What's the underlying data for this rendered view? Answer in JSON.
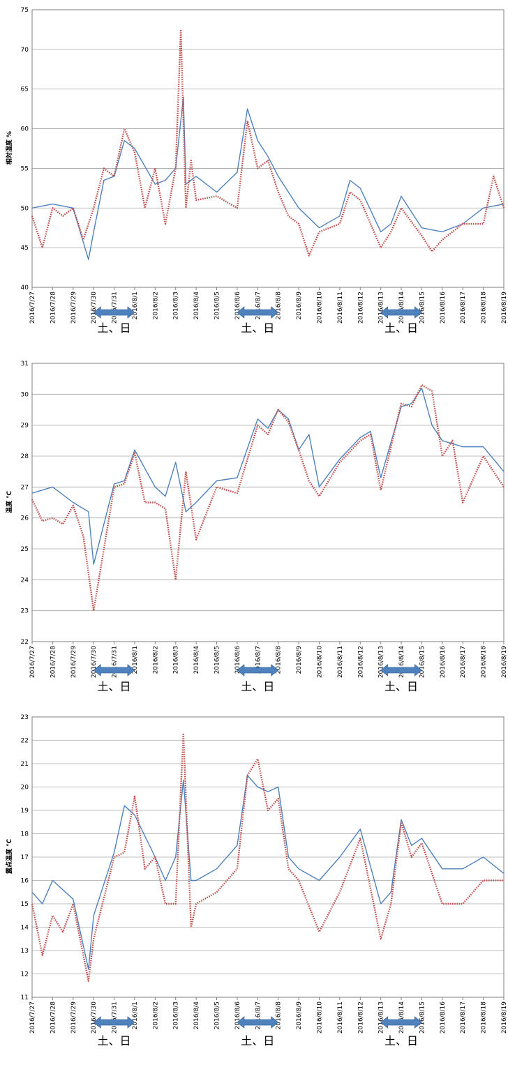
{
  "colors": {
    "series_a": "#4f81bd",
    "series_b": "#c0504d",
    "arrow": "#4f81bd",
    "grid": "#a6a6a6"
  },
  "chart_data": [
    {
      "type": "line",
      "title": "",
      "ylabel": "相対湿度 %",
      "ylim": [
        40,
        75
      ],
      "yticks": [
        40,
        45,
        50,
        55,
        60,
        65,
        70,
        75
      ],
      "xlim": [
        "2016/7/27",
        "2016/8/19"
      ],
      "xticks": [
        "2016/7/27",
        "2016/7/28",
        "2016/7/29",
        "2016/7/30",
        "2016/7/31",
        "2016/8/1",
        "2016/8/2",
        "2016/8/3",
        "2016/8/4",
        "2016/8/5",
        "2016/8/6",
        "2016/8/7",
        "2016/8/8",
        "2016/8/9",
        "2016/8/10",
        "2016/8/11",
        "2016/8/12",
        "2016/8/13",
        "2016/8/14",
        "2016/8/15",
        "2016/8/16",
        "2016/8/17",
        "2016/8/18",
        "2016/8/19"
      ],
      "grid": true,
      "legend": "none",
      "series": [
        {
          "style": "solid",
          "x": [
            "2016/7/27",
            "2016/7/28",
            "2016/7/29",
            "2016/7/29 18:00",
            "2016/7/30",
            "2016/7/30 12:00",
            "2016/7/31",
            "2016/7/31 12:00",
            "2016/8/1",
            "2016/8/2",
            "2016/8/2 12:00",
            "2016/8/3",
            "2016/8/3 9:00",
            "2016/8/3 12:00",
            "2016/8/4",
            "2016/8/5",
            "2016/8/6",
            "2016/8/6 12:00",
            "2016/8/7",
            "2016/8/7 12:00",
            "2016/8/8",
            "2016/8/8 12:00",
            "2016/8/9",
            "2016/8/10",
            "2016/8/11",
            "2016/8/11 12:00",
            "2016/8/12",
            "2016/8/13",
            "2016/8/13 12:00",
            "2016/8/14",
            "2016/8/15",
            "2016/8/16",
            "2016/8/17",
            "2016/8/18",
            "2016/8/19"
          ],
          "values": [
            50,
            50.5,
            50,
            43.5,
            47,
            53.5,
            54,
            58.5,
            57.5,
            53,
            53.5,
            55,
            64,
            53,
            54,
            52,
            54.5,
            62.5,
            58.5,
            56.5,
            54,
            52,
            50,
            47.5,
            49,
            53.5,
            52.5,
            47,
            48,
            51.5,
            47.5,
            47,
            48,
            50,
            50.5
          ]
        },
        {
          "style": "dotted",
          "x": [
            "2016/7/27",
            "2016/7/27 12:00",
            "2016/7/28",
            "2016/7/28 12:00",
            "2016/7/29",
            "2016/7/29 12:00",
            "2016/7/30",
            "2016/7/30 12:00",
            "2016/7/31",
            "2016/7/31 12:00",
            "2016/8/1",
            "2016/8/1 12:00",
            "2016/8/2",
            "2016/8/2 12:00",
            "2016/8/3",
            "2016/8/3 6:00",
            "2016/8/3 12:00",
            "2016/8/3 18:00",
            "2016/8/4",
            "2016/8/5",
            "2016/8/6",
            "2016/8/6 12:00",
            "2016/8/7",
            "2016/8/7 12:00",
            "2016/8/8",
            "2016/8/8 12:00",
            "2016/8/9",
            "2016/8/9 12:00",
            "2016/8/10",
            "2016/8/11",
            "2016/8/11 12:00",
            "2016/8/12",
            "2016/8/13",
            "2016/8/13 12:00",
            "2016/8/14",
            "2016/8/15",
            "2016/8/15 12:00",
            "2016/8/16",
            "2016/8/17",
            "2016/8/18",
            "2016/8/18 12:00",
            "2016/8/19"
          ],
          "values": [
            49,
            45,
            50,
            49,
            50,
            46,
            50,
            55,
            54,
            60,
            57,
            50,
            55,
            48,
            55,
            72.5,
            50,
            56,
            51,
            51.5,
            50,
            61,
            55,
            56,
            52,
            49,
            48,
            44,
            47,
            48,
            52,
            51,
            45,
            47,
            50,
            46.5,
            44.5,
            46,
            48,
            48,
            54,
            50
          ]
        }
      ],
      "annotations": [
        "土、日",
        "土、日",
        "土、日"
      ]
    },
    {
      "type": "line",
      "title": "",
      "ylabel": "温度 ℃",
      "ylim": [
        22,
        31
      ],
      "yticks": [
        22,
        23,
        24,
        25,
        26,
        27,
        28,
        29,
        30,
        31
      ],
      "xlim": [
        "2016/7/27",
        "2016/8/19"
      ],
      "xticks": [
        "2016/7/27",
        "2016/7/28",
        "2016/7/29",
        "2016/7/30",
        "2016/7/31",
        "2016/8/1",
        "2016/8/2",
        "2016/8/3",
        "2016/8/4",
        "2016/8/5",
        "2016/8/6",
        "2016/8/7",
        "2016/8/8",
        "2016/8/9",
        "2016/8/10",
        "2016/8/11",
        "2016/8/12",
        "2016/8/13",
        "2016/8/14",
        "2016/8/15",
        "2016/8/16",
        "2016/8/17",
        "2016/8/18",
        "2016/8/19"
      ],
      "grid": true,
      "legend": "none",
      "series": [
        {
          "style": "solid",
          "x": [
            "2016/7/27",
            "2016/7/28",
            "2016/7/29",
            "2016/7/29 18:00",
            "2016/7/30",
            "2016/7/31",
            "2016/7/31 12:00",
            "2016/8/1",
            "2016/8/2",
            "2016/8/2 12:00",
            "2016/8/3",
            "2016/8/3 12:00",
            "2016/8/4",
            "2016/8/5",
            "2016/8/6",
            "2016/8/7",
            "2016/8/7 12:00",
            "2016/8/8",
            "2016/8/8 12:00",
            "2016/8/9",
            "2016/8/9 12:00",
            "2016/8/10",
            "2016/8/11",
            "2016/8/12",
            "2016/8/12 12:00",
            "2016/8/13",
            "2016/8/14",
            "2016/8/14 12:00",
            "2016/8/15",
            "2016/8/15 12:00",
            "2016/8/16",
            "2016/8/17",
            "2016/8/18",
            "2016/8/19"
          ],
          "values": [
            26.8,
            27,
            26.5,
            26.2,
            24.5,
            27.1,
            27.2,
            28.2,
            27,
            26.7,
            27.8,
            26.2,
            26.5,
            27.2,
            27.3,
            29.2,
            28.9,
            29.5,
            29.2,
            28.2,
            28.7,
            27,
            27.9,
            28.6,
            28.8,
            27.3,
            29.6,
            29.7,
            30.2,
            29,
            28.5,
            28.3,
            28.3,
            27.5
          ]
        },
        {
          "style": "dotted",
          "x": [
            "2016/7/27",
            "2016/7/27 12:00",
            "2016/7/28",
            "2016/7/28 12:00",
            "2016/7/29",
            "2016/7/29 12:00",
            "2016/7/30",
            "2016/7/31",
            "2016/7/31 12:00",
            "2016/8/1",
            "2016/8/1 12:00",
            "2016/8/2",
            "2016/8/2 12:00",
            "2016/8/3",
            "2016/8/3 12:00",
            "2016/8/4",
            "2016/8/5",
            "2016/8/6",
            "2016/8/7",
            "2016/8/7 12:00",
            "2016/8/8",
            "2016/8/8 12:00",
            "2016/8/9",
            "2016/8/9 12:00",
            "2016/8/10",
            "2016/8/11",
            "2016/8/12",
            "2016/8/12 12:00",
            "2016/8/13",
            "2016/8/14",
            "2016/8/14 12:00",
            "2016/8/15",
            "2016/8/15 12:00",
            "2016/8/16",
            "2016/8/16 12:00",
            "2016/8/17",
            "2016/8/18",
            "2016/8/19"
          ],
          "values": [
            26.6,
            25.9,
            26,
            25.8,
            26.4,
            25.4,
            23,
            27,
            27.1,
            28.1,
            26.5,
            26.5,
            26.3,
            24,
            27.5,
            25.3,
            27,
            26.8,
            29,
            28.7,
            29.5,
            29.1,
            28.2,
            27.2,
            26.7,
            27.8,
            28.5,
            28.7,
            26.9,
            29.7,
            29.6,
            30.3,
            30.1,
            28,
            28.5,
            26.5,
            28,
            27
          ]
        }
      ],
      "annotations": [
        "土、日",
        "土、日",
        "土、日"
      ]
    },
    {
      "type": "line",
      "title": "",
      "ylabel": "露点温度 ℃",
      "ylim": [
        11,
        23
      ],
      "yticks": [
        11,
        12,
        13,
        14,
        15,
        16,
        17,
        18,
        19,
        20,
        21,
        22,
        23
      ],
      "xlim": [
        "2016/7/27",
        "2016/8/19"
      ],
      "xticks": [
        "2016/7/27",
        "2016/7/28",
        "2016/7/29",
        "2016/7/30",
        "2016/7/31",
        "2016/8/1",
        "2016/8/2",
        "2016/8/3",
        "2016/8/4",
        "2016/8/5",
        "2016/8/6",
        "2016/8/7",
        "2016/8/8",
        "2016/8/9",
        "2016/8/10",
        "2016/8/11",
        "2016/8/12",
        "2016/8/13",
        "2016/8/14",
        "2016/8/15",
        "2016/8/16",
        "2016/8/17",
        "2016/8/18",
        "2016/8/19"
      ],
      "grid": true,
      "legend": "none",
      "series": [
        {
          "style": "solid",
          "x": [
            "2016/7/27",
            "2016/7/27 12:00",
            "2016/7/28",
            "2016/7/29",
            "2016/7/29 18:00",
            "2016/7/30",
            "2016/7/31",
            "2016/7/31 12:00",
            "2016/8/1",
            "2016/8/2",
            "2016/8/2 12:00",
            "2016/8/3",
            "2016/8/3 9:00",
            "2016/8/3 18:00",
            "2016/8/4",
            "2016/8/5",
            "2016/8/6",
            "2016/8/6 12:00",
            "2016/8/7",
            "2016/8/7 12:00",
            "2016/8/8",
            "2016/8/8 12:00",
            "2016/8/9",
            "2016/8/10",
            "2016/8/11",
            "2016/8/12",
            "2016/8/13",
            "2016/8/13 12:00",
            "2016/8/14",
            "2016/8/14 12:00",
            "2016/8/15",
            "2016/8/16",
            "2016/8/17",
            "2016/8/18",
            "2016/8/19"
          ],
          "values": [
            15.5,
            15,
            16,
            15.2,
            12.2,
            14.5,
            17.2,
            19.2,
            18.8,
            17,
            16,
            17,
            20.3,
            16,
            16,
            16.5,
            17.5,
            20.5,
            20,
            19.8,
            20,
            17,
            16.5,
            16,
            17,
            18.2,
            15,
            15.5,
            18.6,
            17.5,
            17.8,
            16.5,
            16.5,
            17,
            16.3
          ]
        },
        {
          "style": "dotted",
          "x": [
            "2016/7/27",
            "2016/7/27 12:00",
            "2016/7/28",
            "2016/7/28 12:00",
            "2016/7/29",
            "2016/7/29 18:00",
            "2016/7/30",
            "2016/7/31",
            "2016/7/31 12:00",
            "2016/8/1",
            "2016/8/1 12:00",
            "2016/8/2",
            "2016/8/2 12:00",
            "2016/8/3",
            "2016/8/3 9:00",
            "2016/8/3 18:00",
            "2016/8/4",
            "2016/8/5",
            "2016/8/6",
            "2016/8/6 12:00",
            "2016/8/7",
            "2016/8/7 12:00",
            "2016/8/8",
            "2016/8/8 12:00",
            "2016/8/9",
            "2016/8/10",
            "2016/8/11",
            "2016/8/12",
            "2016/8/13",
            "2016/8/13 12:00",
            "2016/8/14",
            "2016/8/14 12:00",
            "2016/8/15",
            "2016/8/16",
            "2016/8/17",
            "2016/8/18",
            "2016/8/19"
          ],
          "values": [
            15,
            12.8,
            14.5,
            13.8,
            15,
            11.7,
            13.5,
            17,
            17.2,
            19.6,
            16.5,
            17,
            15,
            15,
            22.3,
            14,
            15,
            15.5,
            16.5,
            20.5,
            21.2,
            19,
            19.5,
            16.5,
            16,
            13.8,
            15.5,
            17.8,
            13.5,
            15,
            18.5,
            17,
            17.6,
            15,
            15,
            16,
            16
          ]
        }
      ],
      "annotations": [
        "土、日",
        "土、日",
        "土、日"
      ]
    }
  ]
}
